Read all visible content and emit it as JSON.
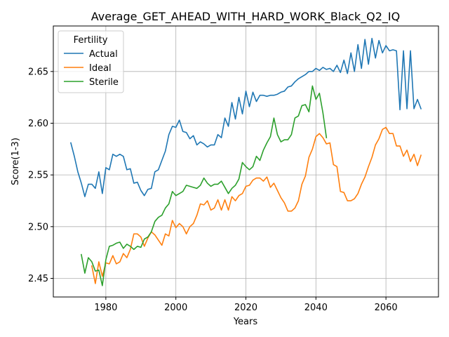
{
  "chart_data": {
    "type": "line",
    "title": "Average_GET_AHEAD_WITH_HARD_WORK_Black_Q2_IQ",
    "xlabel": "Years",
    "ylabel": "Score(1-3)",
    "xlim": [
      1965,
      2075
    ],
    "ylim": [
      2.432,
      2.694
    ],
    "x_ticks": [
      1980,
      2000,
      2020,
      2040,
      2060
    ],
    "x_tick_labels": [
      "1980",
      "2000",
      "2020",
      "2040",
      "2060"
    ],
    "y_ticks": [
      2.45,
      2.5,
      2.55,
      2.6,
      2.65
    ],
    "y_tick_labels": [
      "2.45",
      "2.50",
      "2.55",
      "2.60",
      "2.65"
    ],
    "grid": true,
    "legend": {
      "title": "Fertility",
      "placement": "top-left"
    },
    "series": [
      {
        "name": "Actual",
        "color": "#1f77b4",
        "x": [
          1970,
          1971,
          1972,
          1973,
          1974,
          1975,
          1976,
          1977,
          1978,
          1979,
          1980,
          1981,
          1982,
          1983,
          1984,
          1985,
          1986,
          1987,
          1988,
          1989,
          1990,
          1991,
          1992,
          1993,
          1994,
          1995,
          1996,
          1997,
          1998,
          1999,
          2000,
          2001,
          2002,
          2003,
          2004,
          2005,
          2006,
          2007,
          2008,
          2009,
          2010,
          2011,
          2012,
          2013,
          2014,
          2015,
          2016,
          2017,
          2018,
          2019,
          2020,
          2021,
          2022,
          2023,
          2024,
          2025,
          2026,
          2027,
          2028,
          2029,
          2030,
          2031,
          2032,
          2033,
          2034,
          2035,
          2036,
          2037,
          2038,
          2039,
          2040,
          2041,
          2042,
          2043,
          2044,
          2045,
          2046,
          2047,
          2048,
          2049,
          2050,
          2051,
          2052,
          2053,
          2054,
          2055,
          2056,
          2057,
          2058,
          2059,
          2060,
          2061,
          2062,
          2063,
          2064,
          2065,
          2066,
          2067,
          2068,
          2069,
          2070
        ],
        "y": [
          2.581,
          2.568,
          2.553,
          2.542,
          2.529,
          2.541,
          2.541,
          2.537,
          2.553,
          2.532,
          2.557,
          2.555,
          2.57,
          2.568,
          2.57,
          2.568,
          2.555,
          2.556,
          2.542,
          2.543,
          2.535,
          2.53,
          2.536,
          2.537,
          2.553,
          2.555,
          2.564,
          2.573,
          2.589,
          2.597,
          2.596,
          2.603,
          2.592,
          2.591,
          2.585,
          2.588,
          2.579,
          2.582,
          2.58,
          2.577,
          2.579,
          2.579,
          2.589,
          2.586,
          2.605,
          2.597,
          2.62,
          2.604,
          2.625,
          2.609,
          2.631,
          2.616,
          2.63,
          2.621,
          2.627,
          2.627,
          2.626,
          2.627,
          2.627,
          2.628,
          2.63,
          2.631,
          2.635,
          2.636,
          2.64,
          2.643,
          2.645,
          2.647,
          2.65,
          2.65,
          2.653,
          2.651,
          2.654,
          2.652,
          2.653,
          2.65,
          2.656,
          2.649,
          2.661,
          2.648,
          2.668,
          2.65,
          2.676,
          2.653,
          2.681,
          2.657,
          2.682,
          2.663,
          2.68,
          2.668,
          2.675,
          2.67,
          2.671,
          2.67,
          2.613,
          2.67,
          2.614,
          2.67,
          2.614,
          2.623,
          2.614
        ]
      },
      {
        "name": "Ideal",
        "color": "#ff7f0e",
        "x": [
          1976,
          1977,
          1978,
          1979,
          1980,
          1981,
          1982,
          1983,
          1984,
          1985,
          1986,
          1987,
          1988,
          1989,
          1990,
          1991,
          1992,
          1993,
          1994,
          1995,
          1996,
          1997,
          1998,
          1999,
          2000,
          2001,
          2002,
          2003,
          2004,
          2005,
          2006,
          2007,
          2008,
          2009,
          2010,
          2011,
          2012,
          2013,
          2014,
          2015,
          2016,
          2017,
          2018,
          2019,
          2020,
          2021,
          2022,
          2023,
          2024,
          2025,
          2026,
          2027,
          2028,
          2029,
          2030,
          2031,
          2032,
          2033,
          2034,
          2035,
          2036,
          2037,
          2038,
          2039,
          2040,
          2041,
          2042,
          2043,
          2044,
          2045,
          2046,
          2047,
          2048,
          2049,
          2050,
          2051,
          2052,
          2053,
          2054,
          2055,
          2056,
          2057,
          2058,
          2059,
          2060,
          2061,
          2062,
          2063,
          2064,
          2065,
          2066,
          2067,
          2068,
          2069,
          2070
        ],
        "y": [
          2.462,
          2.445,
          2.466,
          2.452,
          2.465,
          2.464,
          2.472,
          2.464,
          2.466,
          2.474,
          2.47,
          2.478,
          2.493,
          2.493,
          2.49,
          2.481,
          2.489,
          2.495,
          2.492,
          2.487,
          2.482,
          2.493,
          2.491,
          2.506,
          2.499,
          2.503,
          2.5,
          2.493,
          2.5,
          2.503,
          2.511,
          2.522,
          2.521,
          2.525,
          2.516,
          2.518,
          2.526,
          2.516,
          2.526,
          2.516,
          2.529,
          2.525,
          2.53,
          2.532,
          2.539,
          2.54,
          2.545,
          2.547,
          2.547,
          2.544,
          2.548,
          2.538,
          2.542,
          2.535,
          2.528,
          2.523,
          2.515,
          2.515,
          2.518,
          2.525,
          2.541,
          2.549,
          2.567,
          2.575,
          2.587,
          2.59,
          2.586,
          2.58,
          2.581,
          2.56,
          2.558,
          2.534,
          2.533,
          2.525,
          2.525,
          2.527,
          2.532,
          2.541,
          2.548,
          2.558,
          2.567,
          2.579,
          2.585,
          2.594,
          2.596,
          2.59,
          2.59,
          2.578,
          2.578,
          2.568,
          2.574,
          2.563,
          2.57,
          2.559,
          2.569
        ]
      },
      {
        "name": "Sterile",
        "color": "#2ca02c",
        "x": [
          1973,
          1974,
          1975,
          1976,
          1977,
          1978,
          1979,
          1980,
          1981,
          1982,
          1983,
          1984,
          1985,
          1986,
          1987,
          1988,
          1989,
          1990,
          1991,
          1992,
          1993,
          1994,
          1995,
          1996,
          1997,
          1998,
          1999,
          2000,
          2001,
          2002,
          2003,
          2004,
          2005,
          2006,
          2007,
          2008,
          2009,
          2010,
          2011,
          2012,
          2013,
          2014,
          2015,
          2016,
          2017,
          2018,
          2019,
          2020,
          2021,
          2022,
          2023,
          2024,
          2025,
          2026,
          2027,
          2028,
          2029,
          2030,
          2031,
          2032,
          2033,
          2034,
          2035,
          2036,
          2037,
          2038,
          2039,
          2040,
          2041,
          2042,
          2043
        ],
        "y": [
          2.473,
          2.455,
          2.47,
          2.466,
          2.457,
          2.458,
          2.443,
          2.468,
          2.481,
          2.482,
          2.484,
          2.485,
          2.479,
          2.483,
          2.481,
          2.478,
          2.481,
          2.48,
          2.488,
          2.49,
          2.495,
          2.505,
          2.509,
          2.511,
          2.518,
          2.522,
          2.534,
          2.53,
          2.532,
          2.534,
          2.54,
          2.539,
          2.538,
          2.537,
          2.54,
          2.547,
          2.542,
          2.539,
          2.541,
          2.541,
          2.544,
          2.538,
          2.532,
          2.537,
          2.54,
          2.546,
          2.562,
          2.558,
          2.555,
          2.558,
          2.568,
          2.564,
          2.574,
          2.581,
          2.587,
          2.605,
          2.589,
          2.582,
          2.584,
          2.584,
          2.589,
          2.605,
          2.607,
          2.617,
          2.618,
          2.611,
          2.636,
          2.623,
          2.629,
          2.61,
          2.586
        ]
      }
    ]
  }
}
